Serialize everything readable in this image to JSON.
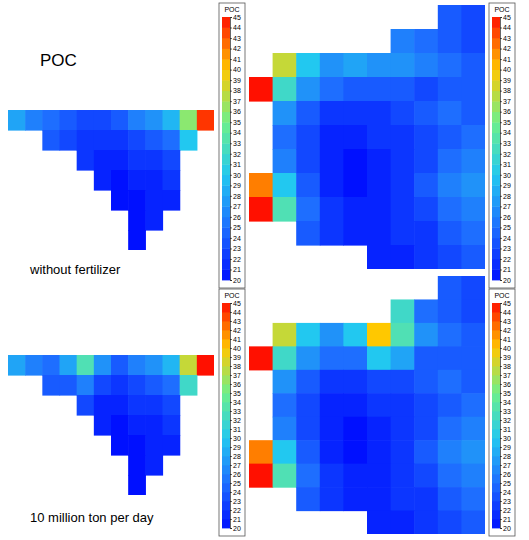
{
  "chart_data": [
    {
      "type": "heatmap",
      "tick_labels": false,
      "annotations": [
        "POC",
        "without fertilizer"
      ],
      "cells": [
        [
          28,
          26,
          25,
          24,
          23,
          23,
          24,
          26,
          27,
          29,
          36,
          44
        ],
        [
          null,
          null,
          24,
          23,
          22,
          22,
          22,
          23,
          24,
          25,
          30,
          null
        ],
        [
          null,
          null,
          null,
          null,
          22,
          21,
          21,
          22,
          22,
          23,
          null,
          null
        ],
        [
          null,
          null,
          null,
          null,
          null,
          21,
          20,
          21,
          21,
          22,
          null,
          null
        ],
        [
          null,
          null,
          null,
          null,
          null,
          null,
          20,
          20,
          21,
          21,
          null,
          null
        ],
        [
          null,
          null,
          null,
          null,
          null,
          null,
          null,
          20,
          21,
          null,
          null,
          null
        ],
        [
          null,
          null,
          null,
          null,
          null,
          null,
          null,
          20,
          null,
          null,
          null,
          null
        ]
      ],
      "colorbar": {
        "title": "POC",
        "range": [
          20,
          45
        ],
        "ticks": [
          20,
          21,
          22,
          23,
          24,
          25,
          26,
          27,
          28,
          29,
          30,
          31,
          32,
          33,
          34,
          35,
          36,
          37,
          38,
          39,
          40,
          41,
          42,
          43,
          44,
          45
        ]
      }
    },
    {
      "type": "heatmap",
      "tick_labels": false,
      "cells": [
        [
          null,
          null,
          null,
          null,
          null,
          null,
          null,
          null,
          24,
          23
        ],
        [
          null,
          null,
          null,
          null,
          null,
          null,
          26,
          25,
          24,
          23
        ],
        [
          null,
          38,
          30,
          27,
          28,
          27,
          27,
          26,
          25,
          24
        ],
        [
          45,
          32,
          27,
          25,
          24,
          24,
          24,
          23,
          24,
          24
        ],
        [
          null,
          27,
          24,
          22,
          22,
          22,
          23,
          24,
          25,
          24
        ],
        [
          null,
          25,
          23,
          21,
          21,
          22,
          22,
          23,
          24,
          25
        ],
        [
          null,
          26,
          23,
          21,
          20,
          21,
          22,
          23,
          25,
          26
        ],
        [
          42,
          30,
          24,
          21,
          20,
          21,
          22,
          24,
          26,
          27
        ],
        [
          45,
          33,
          25,
          22,
          21,
          21,
          22,
          23,
          25,
          26
        ],
        [
          null,
          null,
          24,
          22,
          21,
          21,
          22,
          22,
          24,
          25
        ],
        [
          null,
          null,
          null,
          null,
          null,
          21,
          21,
          22,
          23,
          24
        ]
      ],
      "colorbar": {
        "title": "POC",
        "range": [
          20,
          45
        ],
        "ticks": [
          20,
          21,
          22,
          23,
          24,
          25,
          26,
          27,
          28,
          29,
          30,
          31,
          32,
          33,
          34,
          35,
          36,
          37,
          38,
          39,
          40,
          41,
          42,
          43,
          44,
          45
        ]
      }
    },
    {
      "type": "heatmap",
      "tick_labels": false,
      "annotations": [
        "10 million ton per day"
      ],
      "cells": [
        [
          28,
          26,
          25,
          28,
          33,
          27,
          24,
          26,
          27,
          29,
          38,
          45
        ],
        [
          null,
          null,
          24,
          24,
          26,
          23,
          22,
          23,
          24,
          25,
          32,
          null
        ],
        [
          null,
          null,
          null,
          null,
          23,
          21,
          21,
          22,
          22,
          23,
          null,
          null
        ],
        [
          null,
          null,
          null,
          null,
          null,
          21,
          20,
          21,
          21,
          22,
          null,
          null
        ],
        [
          null,
          null,
          null,
          null,
          null,
          null,
          20,
          20,
          21,
          21,
          null,
          null
        ],
        [
          null,
          null,
          null,
          null,
          null,
          null,
          null,
          20,
          21,
          null,
          null,
          null
        ],
        [
          null,
          null,
          null,
          null,
          null,
          null,
          null,
          20,
          null,
          null,
          null,
          null
        ]
      ],
      "colorbar": {
        "title": "POC",
        "range": [
          20,
          45
        ],
        "ticks": [
          20,
          21,
          22,
          23,
          24,
          25,
          26,
          27,
          28,
          29,
          30,
          31,
          32,
          33,
          34,
          35,
          36,
          37,
          38,
          39,
          40,
          41,
          42,
          43,
          44,
          45
        ]
      }
    },
    {
      "type": "heatmap",
      "tick_labels": false,
      "cells": [
        [
          null,
          null,
          null,
          null,
          null,
          null,
          null,
          null,
          24,
          23
        ],
        [
          null,
          null,
          null,
          null,
          null,
          null,
          32,
          25,
          24,
          23
        ],
        [
          null,
          38,
          30,
          27,
          30,
          40,
          33,
          27,
          25,
          24
        ],
        [
          45,
          32,
          27,
          25,
          25,
          30,
          28,
          24,
          24,
          24
        ],
        [
          null,
          27,
          24,
          22,
          22,
          23,
          23,
          24,
          25,
          24
        ],
        [
          null,
          25,
          23,
          21,
          21,
          22,
          22,
          23,
          24,
          25
        ],
        [
          null,
          26,
          23,
          21,
          20,
          21,
          22,
          23,
          25,
          26
        ],
        [
          42,
          30,
          24,
          21,
          20,
          21,
          22,
          24,
          26,
          27
        ],
        [
          45,
          33,
          25,
          22,
          21,
          21,
          22,
          23,
          25,
          26
        ],
        [
          null,
          null,
          24,
          22,
          21,
          21,
          22,
          22,
          24,
          25
        ],
        [
          null,
          null,
          null,
          null,
          null,
          21,
          21,
          22,
          23,
          24
        ]
      ],
      "colorbar": {
        "title": "POC",
        "range": [
          20,
          45
        ],
        "ticks": [
          20,
          21,
          22,
          23,
          24,
          25,
          26,
          27,
          28,
          29,
          30,
          31,
          32,
          33,
          34,
          35,
          36,
          37,
          38,
          39,
          40,
          41,
          42,
          43,
          44,
          45
        ]
      }
    }
  ]
}
